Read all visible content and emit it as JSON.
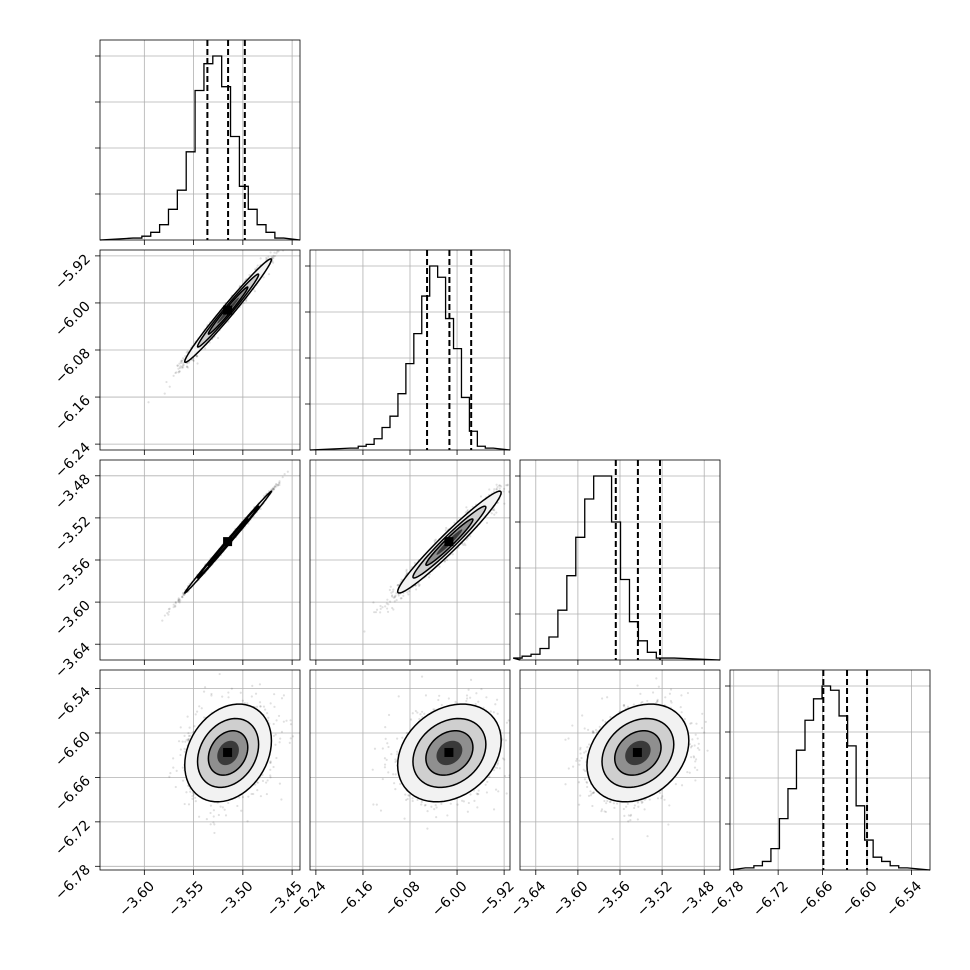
{
  "chart_data": {
    "type": "corner",
    "parameters": [
      {
        "median": -3.515,
        "q16": -3.536,
        "q84": -3.498,
        "range": [
          -3.645,
          -3.442
        ],
        "bins_center": -3.535,
        "bin_width": 0.009,
        "hist": [
          1,
          2,
          4,
          8,
          16,
          26,
          46,
          78,
          92,
          96,
          80,
          54,
          28,
          16,
          8,
          4,
          1
        ],
        "ticks": [
          "−3.60",
          "−3.55",
          "−3.50",
          "−3.45"
        ],
        "tick_values": [
          -3.6,
          -3.55,
          -3.5,
          -3.45
        ]
      },
      {
        "median": -6.013,
        "q16": -6.051,
        "q84": -5.976,
        "range": [
          -6.25,
          -5.91
        ],
        "bins_center": -6.06,
        "bin_width": 0.0135,
        "hist": [
          1,
          2,
          3,
          6,
          12,
          18,
          30,
          46,
          62,
          82,
          98,
          92,
          70,
          54,
          28,
          10,
          2,
          1
        ],
        "ticks": [
          "−6.24",
          "−6.16",
          "−6.08",
          "−6.00",
          "−5.92"
        ],
        "tick_values": [
          -6.24,
          -6.16,
          -6.08,
          -6.0,
          -5.92
        ]
      },
      {
        "median": -3.543,
        "q16": -3.564,
        "q84": -3.522,
        "range": [
          -3.655,
          -3.465
        ],
        "bins_center": -3.585,
        "bin_width": 0.0085,
        "hist": [
          1,
          2,
          3,
          6,
          12,
          26,
          44,
          64,
          84,
          96,
          96,
          72,
          42,
          20,
          10,
          4,
          1,
          1
        ],
        "ticks": [
          "−3.64",
          "−3.60",
          "−3.56",
          "−3.52",
          "−3.48"
        ],
        "tick_values": [
          -3.64,
          -3.6,
          -3.56,
          -3.52,
          -3.48
        ]
      },
      {
        "median": -6.627,
        "q16": -6.659,
        "q84": -6.6,
        "range": [
          -6.785,
          -6.515
        ],
        "bins_center": -6.655,
        "bin_width": 0.0115,
        "hist": [
          1,
          2,
          4,
          10,
          24,
          38,
          56,
          70,
          80,
          86,
          84,
          72,
          58,
          30,
          14,
          6,
          4,
          2,
          1
        ],
        "ticks": [
          "−6.78",
          "−6.72",
          "−6.66",
          "−6.60",
          "−6.54"
        ],
        "tick_values": [
          -6.78,
          -6.72,
          -6.66,
          -6.6,
          -6.54
        ]
      }
    ],
    "pair_correlation": {
      "1_0": 0.985,
      "2_0": 0.998,
      "2_1": 0.97,
      "3_0": 0.25,
      "3_1": 0.25,
      "3_2": 0.25
    },
    "sample_sigma": [
      0.02,
      0.04,
      0.022,
      0.03
    ],
    "grid": true,
    "xlabels": [
      "",
      "",
      "",
      ""
    ],
    "ylabels": [
      "",
      "",
      "",
      ""
    ]
  }
}
